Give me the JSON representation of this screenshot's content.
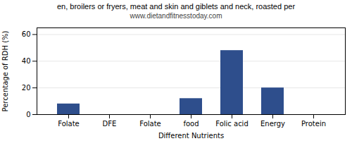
{
  "chart_data": {
    "type": "bar",
    "title": "en, broilers or fryers, meat and skin and giblets and neck, roasted per",
    "subtitle": "www.dietandfitnesstoday.com",
    "xlabel": "Different Nutrients",
    "ylabel": "Percentage of RDH (%)",
    "categories": [
      "Folate",
      "DFE",
      "Folate",
      "food",
      "Folic acid",
      "Energy",
      "Protein"
    ],
    "values": [
      8,
      0,
      0,
      12,
      48,
      20,
      0
    ],
    "color": "#2e4e8c",
    "ylim": [
      0,
      65
    ],
    "yticks": [
      0,
      20,
      40,
      60
    ],
    "grid": true
  }
}
